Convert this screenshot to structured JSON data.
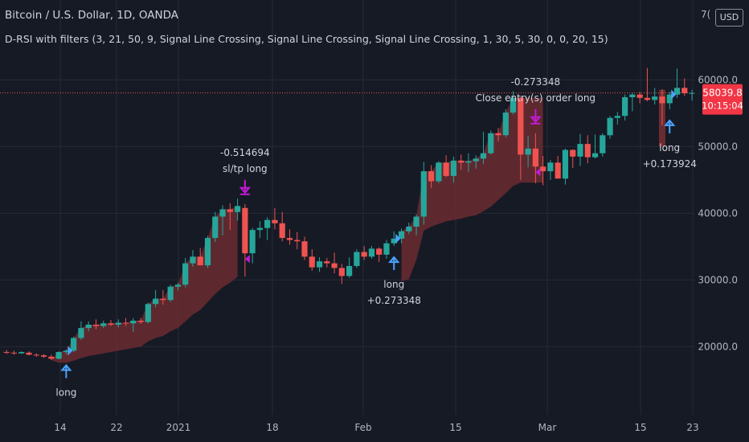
{
  "header": {
    "title": "Bitcoin / U.S. Dollar, 1D, OANDA",
    "indicator": "D-RSI with filters (3, 21, 50, 9, Signal Line Crossing, Signal Line Crossing, Signal Line Crossing, 1, 30, 5, 30, 0, 0, 20, 15)",
    "currency": "USD",
    "top_tick": "7("
  },
  "colors": {
    "background": "#161a25",
    "up": "#26a69a",
    "down": "#ef5350",
    "band": "#6b2c31",
    "entry_arrow": "#4ba3ff",
    "exit_arrow": "#c21ad6",
    "price_tag": "#f23645",
    "grid": "#262a35",
    "text": "#d1d4dc"
  },
  "chart_data": {
    "type": "candlestick",
    "title": "Bitcoin / U.S. Dollar, 1D, OANDA",
    "y_axis": {
      "ticks": [
        20000,
        30000,
        40000,
        50000,
        60000
      ],
      "tick_labels": [
        "20000.0",
        "30000.0",
        "40000.0",
        "50000.0",
        "60000.0"
      ],
      "range": [
        11500,
        71500
      ]
    },
    "x_axis": {
      "tick_labels": [
        "14",
        "22",
        "2021",
        "18",
        "Feb",
        "15",
        "Mar",
        "15",
        "23"
      ]
    },
    "current_price": {
      "value": 58039.8,
      "label": "58039.8",
      "countdown": "10:15:04"
    },
    "candles": [
      {
        "o": 19200,
        "h": 19500,
        "l": 18900,
        "c": 19100
      },
      {
        "o": 19100,
        "h": 19400,
        "l": 18800,
        "c": 19000
      },
      {
        "o": 19000,
        "h": 19300,
        "l": 18900,
        "c": 19200
      },
      {
        "o": 19100,
        "h": 19300,
        "l": 18700,
        "c": 18800
      },
      {
        "o": 18800,
        "h": 19000,
        "l": 18500,
        "c": 18700
      },
      {
        "o": 18700,
        "h": 18900,
        "l": 18300,
        "c": 18500
      },
      {
        "o": 18500,
        "h": 18800,
        "l": 18000,
        "c": 18200
      },
      {
        "o": 18200,
        "h": 19300,
        "l": 18100,
        "c": 19200
      },
      {
        "o": 19200,
        "h": 19600,
        "l": 18900,
        "c": 19400
      },
      {
        "o": 19400,
        "h": 21500,
        "l": 19200,
        "c": 21300
      },
      {
        "o": 21300,
        "h": 23800,
        "l": 21000,
        "c": 22800
      },
      {
        "o": 22800,
        "h": 23800,
        "l": 22300,
        "c": 23300
      },
      {
        "o": 23300,
        "h": 24100,
        "l": 22600,
        "c": 23100
      },
      {
        "o": 23100,
        "h": 23900,
        "l": 22800,
        "c": 23500
      },
      {
        "o": 23500,
        "h": 24000,
        "l": 23100,
        "c": 23300
      },
      {
        "o": 23300,
        "h": 24100,
        "l": 22900,
        "c": 23600
      },
      {
        "o": 23600,
        "h": 24300,
        "l": 23100,
        "c": 23500
      },
      {
        "o": 23500,
        "h": 24300,
        "l": 22200,
        "c": 23900
      },
      {
        "o": 23900,
        "h": 24300,
        "l": 23400,
        "c": 23700
      },
      {
        "o": 23700,
        "h": 26600,
        "l": 23500,
        "c": 26400
      },
      {
        "o": 26400,
        "h": 28500,
        "l": 25900,
        "c": 27200
      },
      {
        "o": 27200,
        "h": 28500,
        "l": 26300,
        "c": 27000
      },
      {
        "o": 27000,
        "h": 29300,
        "l": 26700,
        "c": 29000
      },
      {
        "o": 29000,
        "h": 29600,
        "l": 28400,
        "c": 29300
      },
      {
        "o": 29300,
        "h": 33300,
        "l": 28900,
        "c": 32500
      },
      {
        "o": 32500,
        "h": 34500,
        "l": 32000,
        "c": 33500
      },
      {
        "o": 33500,
        "h": 34800,
        "l": 32500,
        "c": 32200
      },
      {
        "o": 32200,
        "h": 36600,
        "l": 31800,
        "c": 36300
      },
      {
        "o": 36300,
        "h": 40200,
        "l": 35700,
        "c": 39500
      },
      {
        "o": 39500,
        "h": 41200,
        "l": 36700,
        "c": 40600
      },
      {
        "o": 40600,
        "h": 41500,
        "l": 37500,
        "c": 40200
      },
      {
        "o": 40200,
        "h": 42200,
        "l": 38900,
        "c": 41100
      },
      {
        "o": 40800,
        "h": 41400,
        "l": 30500,
        "c": 34000
      },
      {
        "o": 34000,
        "h": 37800,
        "l": 32500,
        "c": 37500
      },
      {
        "o": 37500,
        "h": 38800,
        "l": 36300,
        "c": 37800
      },
      {
        "o": 37800,
        "h": 39400,
        "l": 36000,
        "c": 39000
      },
      {
        "o": 39000,
        "h": 40800,
        "l": 37600,
        "c": 38500
      },
      {
        "o": 38500,
        "h": 40200,
        "l": 35800,
        "c": 36300
      },
      {
        "o": 36300,
        "h": 37600,
        "l": 35300,
        "c": 36000
      },
      {
        "o": 36000,
        "h": 37200,
        "l": 34600,
        "c": 35800
      },
      {
        "o": 35800,
        "h": 36500,
        "l": 33000,
        "c": 33500
      },
      {
        "o": 33500,
        "h": 34600,
        "l": 31400,
        "c": 31900
      },
      {
        "o": 31900,
        "h": 33400,
        "l": 31200,
        "c": 32800
      },
      {
        "o": 32800,
        "h": 33300,
        "l": 31900,
        "c": 32500
      },
      {
        "o": 32500,
        "h": 34100,
        "l": 31000,
        "c": 31800
      },
      {
        "o": 31800,
        "h": 32400,
        "l": 29400,
        "c": 30600
      },
      {
        "o": 30600,
        "h": 33400,
        "l": 30300,
        "c": 32100
      },
      {
        "o": 32100,
        "h": 34600,
        "l": 31800,
        "c": 34200
      },
      {
        "o": 34200,
        "h": 35100,
        "l": 33000,
        "c": 33500
      },
      {
        "o": 33500,
        "h": 35100,
        "l": 33200,
        "c": 34700
      },
      {
        "o": 34700,
        "h": 34900,
        "l": 32700,
        "c": 33800
      },
      {
        "o": 33800,
        "h": 36000,
        "l": 33200,
        "c": 35500
      },
      {
        "o": 35500,
        "h": 37300,
        "l": 35100,
        "c": 36200
      },
      {
        "o": 36200,
        "h": 37700,
        "l": 35500,
        "c": 37300
      },
      {
        "o": 37300,
        "h": 38600,
        "l": 36900,
        "c": 38000
      },
      {
        "o": 38000,
        "h": 39800,
        "l": 36700,
        "c": 39500
      },
      {
        "o": 39500,
        "h": 47700,
        "l": 38300,
        "c": 46300
      },
      {
        "o": 46300,
        "h": 47200,
        "l": 43800,
        "c": 44800
      },
      {
        "o": 44800,
        "h": 47800,
        "l": 44500,
        "c": 47600
      },
      {
        "o": 47600,
        "h": 48700,
        "l": 45400,
        "c": 45600
      },
      {
        "o": 45600,
        "h": 48500,
        "l": 44600,
        "c": 47900
      },
      {
        "o": 47900,
        "h": 48800,
        "l": 46500,
        "c": 47600
      },
      {
        "o": 47600,
        "h": 49000,
        "l": 46200,
        "c": 47800
      },
      {
        "o": 47800,
        "h": 48700,
        "l": 46700,
        "c": 48200
      },
      {
        "o": 48200,
        "h": 52200,
        "l": 47400,
        "c": 49000
      },
      {
        "o": 49000,
        "h": 52400,
        "l": 48800,
        "c": 52000
      },
      {
        "o": 52000,
        "h": 52800,
        "l": 50800,
        "c": 51700
      },
      {
        "o": 51700,
        "h": 55600,
        "l": 51400,
        "c": 55100
      },
      {
        "o": 55100,
        "h": 58300,
        "l": 54800,
        "c": 57300
      },
      {
        "o": 57300,
        "h": 57500,
        "l": 45000,
        "c": 48800
      },
      {
        "o": 48800,
        "h": 51600,
        "l": 46900,
        "c": 49700
      },
      {
        "o": 49700,
        "h": 52000,
        "l": 44500,
        "c": 47000
      },
      {
        "o": 47000,
        "h": 48600,
        "l": 44200,
        "c": 46300
      },
      {
        "o": 46300,
        "h": 48000,
        "l": 45000,
        "c": 47600
      },
      {
        "o": 47600,
        "h": 48600,
        "l": 45300,
        "c": 45200
      },
      {
        "o": 45200,
        "h": 49700,
        "l": 44300,
        "c": 49500
      },
      {
        "o": 49500,
        "h": 49600,
        "l": 46800,
        "c": 48500
      },
      {
        "o": 48500,
        "h": 51900,
        "l": 47100,
        "c": 50400
      },
      {
        "o": 50400,
        "h": 51700,
        "l": 47500,
        "c": 48400
      },
      {
        "o": 48400,
        "h": 51800,
        "l": 48200,
        "c": 49000
      },
      {
        "o": 49000,
        "h": 52000,
        "l": 48500,
        "c": 51700
      },
      {
        "o": 51700,
        "h": 54600,
        "l": 51200,
        "c": 54300
      },
      {
        "o": 54300,
        "h": 55200,
        "l": 53300,
        "c": 54600
      },
      {
        "o": 54600,
        "h": 57800,
        "l": 53900,
        "c": 57400
      },
      {
        "o": 57400,
        "h": 58100,
        "l": 55300,
        "c": 57800
      },
      {
        "o": 57800,
        "h": 58200,
        "l": 56500,
        "c": 57300
      },
      {
        "o": 57300,
        "h": 61800,
        "l": 56800,
        "c": 57000
      },
      {
        "o": 57000,
        "h": 58800,
        "l": 56300,
        "c": 57500
      },
      {
        "o": 57500,
        "h": 58600,
        "l": 53200,
        "c": 56500
      },
      {
        "o": 56500,
        "h": 58200,
        "l": 55600,
        "c": 57800
      },
      {
        "o": 57800,
        "h": 61700,
        "l": 57300,
        "c": 58800
      },
      {
        "o": 58800,
        "h": 60200,
        "l": 57600,
        "c": 58000
      },
      {
        "o": 58000,
        "h": 58500,
        "l": 56900,
        "c": 58039.8
      }
    ],
    "band": [
      [
        18000,
        18000
      ],
      [
        18000,
        18000
      ],
      [
        18000,
        18000
      ],
      [
        18000,
        18000
      ],
      [
        18000,
        18000
      ],
      [
        18000,
        18000
      ],
      [
        18000,
        18000
      ],
      [
        17600,
        19200
      ],
      [
        17600,
        19400
      ],
      [
        17900,
        21300
      ],
      [
        18300,
        22800
      ],
      [
        18600,
        23300
      ],
      [
        18800,
        23300
      ],
      [
        19000,
        23500
      ],
      [
        19200,
        23500
      ],
      [
        19400,
        23600
      ],
      [
        19600,
        23600
      ],
      [
        19800,
        23900
      ],
      [
        20000,
        23900
      ],
      [
        20800,
        26400
      ],
      [
        21300,
        27200
      ],
      [
        21600,
        27200
      ],
      [
        22300,
        29000
      ],
      [
        22800,
        29300
      ],
      [
        23800,
        32500
      ],
      [
        24800,
        33500
      ],
      [
        25500,
        33500
      ],
      [
        26700,
        36300
      ],
      [
        27900,
        39500
      ],
      [
        28900,
        40600
      ],
      [
        29600,
        40600
      ],
      [
        30500,
        41100
      ],
      [
        null,
        null
      ],
      [
        null,
        null
      ],
      [
        null,
        null
      ],
      [
        null,
        null
      ],
      [
        null,
        null
      ],
      [
        null,
        null
      ],
      [
        null,
        null
      ],
      [
        null,
        null
      ],
      [
        null,
        null
      ],
      [
        null,
        null
      ],
      [
        null,
        null
      ],
      [
        null,
        null
      ],
      [
        null,
        null
      ],
      [
        null,
        null
      ],
      [
        null,
        null
      ],
      [
        null,
        null
      ],
      [
        null,
        null
      ],
      [
        null,
        null
      ],
      [
        null,
        null
      ],
      [
        null,
        null
      ],
      [
        null,
        null
      ],
      [
        29800,
        37300
      ],
      [
        30100,
        38000
      ],
      [
        33000,
        39500
      ],
      [
        37400,
        46300
      ],
      [
        38000,
        46300
      ],
      [
        38400,
        47600
      ],
      [
        38800,
        47600
      ],
      [
        39000,
        47900
      ],
      [
        39200,
        47900
      ],
      [
        39500,
        47900
      ],
      [
        39700,
        48200
      ],
      [
        40300,
        49000
      ],
      [
        41000,
        52000
      ],
      [
        42000,
        52000
      ],
      [
        43000,
        55100
      ],
      [
        44100,
        57300
      ],
      [
        44600,
        57300
      ],
      [
        44600,
        57300
      ],
      [
        44600,
        57300
      ],
      [
        44600,
        57300
      ],
      [
        null,
        null
      ],
      [
        null,
        null
      ],
      [
        null,
        null
      ],
      [
        null,
        null
      ],
      [
        null,
        null
      ],
      [
        null,
        null
      ],
      [
        null,
        null
      ],
      [
        null,
        null
      ],
      [
        null,
        null
      ],
      [
        null,
        null
      ],
      [
        null,
        null
      ],
      [
        null,
        null
      ],
      [
        null,
        null
      ],
      [
        null,
        null
      ],
      [
        null,
        null
      ],
      [
        50000,
        58500
      ],
      [
        null,
        null
      ],
      [
        null,
        null
      ],
      [
        null,
        null
      ]
    ],
    "annotations": [
      {
        "bar": 8,
        "kind": "entry",
        "label": "long",
        "value": ""
      },
      {
        "bar": 32,
        "kind": "exit",
        "label": "sl/tp long",
        "value": "-0.514694"
      },
      {
        "bar": 52,
        "kind": "entry",
        "label": "long",
        "value": "+0.273348"
      },
      {
        "bar": 71,
        "kind": "exit",
        "label": "Close entry(s) order long",
        "value": "-0.273348"
      },
      {
        "bar": 89,
        "kind": "entry",
        "label": "long",
        "value": "+0.173924"
      }
    ]
  }
}
